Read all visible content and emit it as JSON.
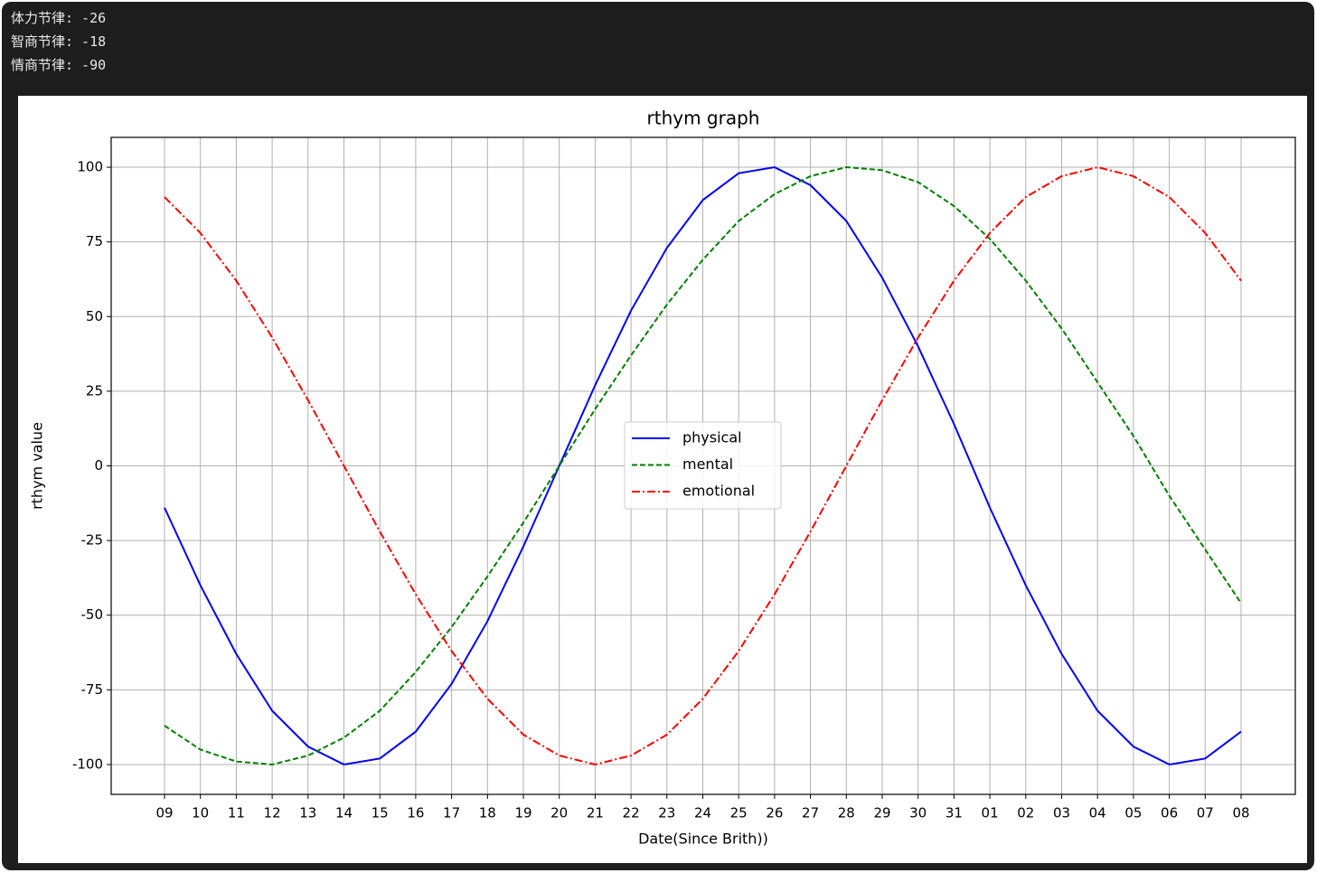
{
  "console": {
    "lines": [
      "体力节律: -26",
      "智商节律: -18",
      "情商节律: -90"
    ]
  },
  "chart_data": {
    "type": "line",
    "title": "rthym graph",
    "x_label": "Date(Since Brith))",
    "y_label": "rthym value",
    "categories": [
      "09",
      "10",
      "11",
      "12",
      "13",
      "14",
      "15",
      "16",
      "17",
      "18",
      "19",
      "20",
      "21",
      "22",
      "23",
      "24",
      "25",
      "26",
      "27",
      "28",
      "29",
      "30",
      "31",
      "01",
      "02",
      "03",
      "04",
      "05",
      "06",
      "07",
      "08"
    ],
    "series": [
      {
        "name": "physical",
        "color": "#0000ff",
        "dash": "solid",
        "values": [
          -14,
          -40,
          -63,
          -82,
          -94,
          -100,
          -98,
          -89,
          -73,
          -52,
          -27,
          0,
          27,
          52,
          73,
          89,
          98,
          100,
          94,
          82,
          63,
          40,
          14,
          -14,
          -40,
          -63,
          -82,
          -94,
          -100,
          -98,
          -89
        ]
      },
      {
        "name": "mental",
        "color": "#008000",
        "dash": "dashed",
        "values": [
          -87,
          -95,
          -99,
          -100,
          -97,
          -91,
          -82,
          -69,
          -54,
          -37,
          -19,
          0,
          19,
          37,
          54,
          69,
          82,
          91,
          97,
          100,
          99,
          95,
          87,
          76,
          62,
          46,
          28,
          10,
          -10,
          -28,
          -46
        ]
      },
      {
        "name": "emotional",
        "color": "#ff0000",
        "dash": "dashdot",
        "values": [
          90,
          78,
          62,
          43,
          22,
          0,
          -22,
          -43,
          -62,
          -78,
          -90,
          -97,
          -100,
          -97,
          -90,
          -78,
          -62,
          -43,
          -22,
          0,
          22,
          43,
          62,
          78,
          90,
          97,
          100,
          97,
          90,
          78,
          62
        ]
      }
    ],
    "ylim": [
      -110,
      110
    ],
    "yticks": [
      -100,
      -75,
      -50,
      -25,
      0,
      25,
      50,
      75,
      100
    ],
    "grid": true,
    "legend": "center"
  }
}
